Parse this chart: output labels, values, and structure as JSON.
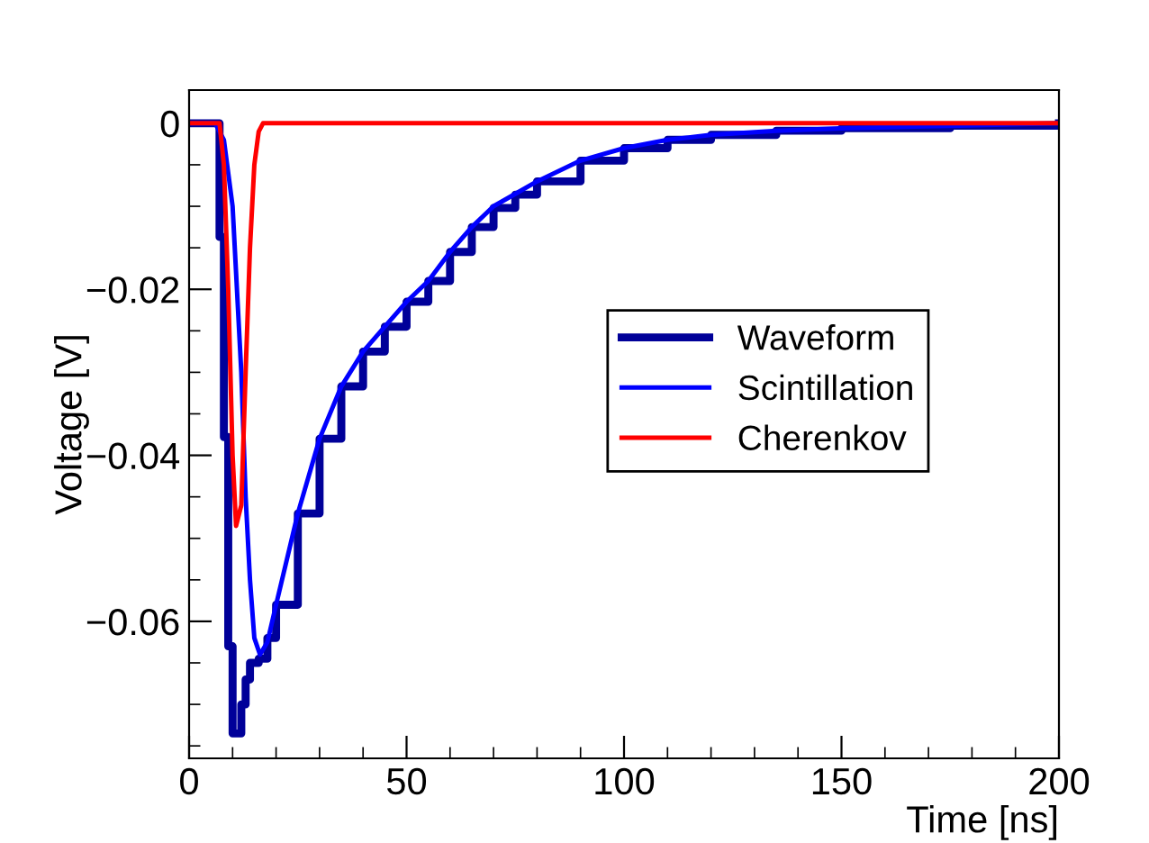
{
  "chart_data": {
    "type": "line",
    "xlabel": "Time [ns]",
    "ylabel": "Voltage [V]",
    "xlim": [
      0,
      200
    ],
    "ylim": [
      -0.0765,
      0.004
    ],
    "xticks": [
      0,
      {
        "value": 10,
        "label": null
      },
      {
        "value": 20,
        "label": null
      },
      {
        "value": 30,
        "label": null
      },
      {
        "value": 40,
        "label": null
      },
      50,
      {
        "value": 60,
        "label": null
      },
      {
        "value": 70,
        "label": null
      },
      {
        "value": 80,
        "label": null
      },
      {
        "value": 90,
        "label": null
      },
      100,
      {
        "value": 110,
        "label": null
      },
      {
        "value": 120,
        "label": null
      },
      {
        "value": 130,
        "label": null
      },
      {
        "value": 140,
        "label": null
      },
      150,
      {
        "value": 160,
        "label": null
      },
      {
        "value": 170,
        "label": null
      },
      {
        "value": 180,
        "label": null
      },
      {
        "value": 190,
        "label": null
      },
      200
    ],
    "yticks": [
      {
        "value": -0.075,
        "label": null
      },
      {
        "value": -0.07,
        "label": null
      },
      {
        "value": -0.065,
        "label": null
      },
      {
        "value": -0.06,
        "label": "−0.06"
      },
      {
        "value": -0.055,
        "label": null
      },
      {
        "value": -0.05,
        "label": null
      },
      {
        "value": -0.045,
        "label": null
      },
      {
        "value": -0.04,
        "label": "−0.04"
      },
      {
        "value": -0.035,
        "label": null
      },
      {
        "value": -0.03,
        "label": null
      },
      {
        "value": -0.025,
        "label": null
      },
      {
        "value": -0.02,
        "label": "−0.02"
      },
      {
        "value": -0.015,
        "label": null
      },
      {
        "value": -0.01,
        "label": null
      },
      {
        "value": -0.005,
        "label": null
      },
      0
    ],
    "grid": false,
    "legend": "right",
    "series": [
      {
        "name": "Waveform",
        "type": "step",
        "color": "#000099",
        "x": [
          0,
          6,
          7,
          8,
          9,
          10,
          12,
          13,
          14,
          16,
          18,
          20,
          25,
          30,
          35,
          40,
          45,
          50,
          55,
          60,
          65,
          70,
          75,
          80,
          90,
          100,
          110,
          120,
          135,
          150,
          175,
          200
        ],
        "values": [
          0,
          0,
          -0.0137,
          -0.0378,
          -0.063,
          -0.0735,
          -0.07,
          -0.067,
          -0.065,
          -0.0645,
          -0.062,
          -0.058,
          -0.047,
          -0.038,
          -0.0317,
          -0.0275,
          -0.0245,
          -0.0215,
          -0.019,
          -0.0155,
          -0.0125,
          -0.0102,
          -0.0086,
          -0.007,
          -0.0045,
          -0.003,
          -0.002,
          -0.0014,
          -0.0009,
          -0.0006,
          -0.0003,
          0
        ]
      },
      {
        "name": "Scintillation",
        "color": "#0000ff",
        "x": [
          0,
          6,
          8,
          10,
          12,
          13,
          14,
          15,
          16.3,
          18,
          20,
          25,
          30,
          35,
          40,
          45,
          50,
          55,
          60,
          65,
          70,
          75,
          80,
          90,
          100,
          110,
          120,
          135,
          150,
          175,
          200
        ],
        "values": [
          0,
          0,
          -0.002,
          -0.01,
          -0.03,
          -0.045,
          -0.055,
          -0.062,
          -0.064,
          -0.0625,
          -0.058,
          -0.047,
          -0.038,
          -0.0317,
          -0.0275,
          -0.0245,
          -0.0215,
          -0.019,
          -0.0155,
          -0.0125,
          -0.01,
          -0.0085,
          -0.007,
          -0.0045,
          -0.003,
          -0.002,
          -0.0014,
          -0.0009,
          -0.0006,
          -0.0003,
          0
        ]
      },
      {
        "name": "Cherenkov",
        "color": "#ff0000",
        "x": [
          0,
          7,
          8,
          9,
          10,
          10.8,
          12,
          13,
          14,
          15,
          16,
          17,
          200
        ],
        "values": [
          0,
          0,
          -0.005,
          -0.02,
          -0.04,
          -0.0485,
          -0.046,
          -0.03,
          -0.015,
          -0.005,
          -0.001,
          0,
          0
        ]
      }
    ]
  }
}
